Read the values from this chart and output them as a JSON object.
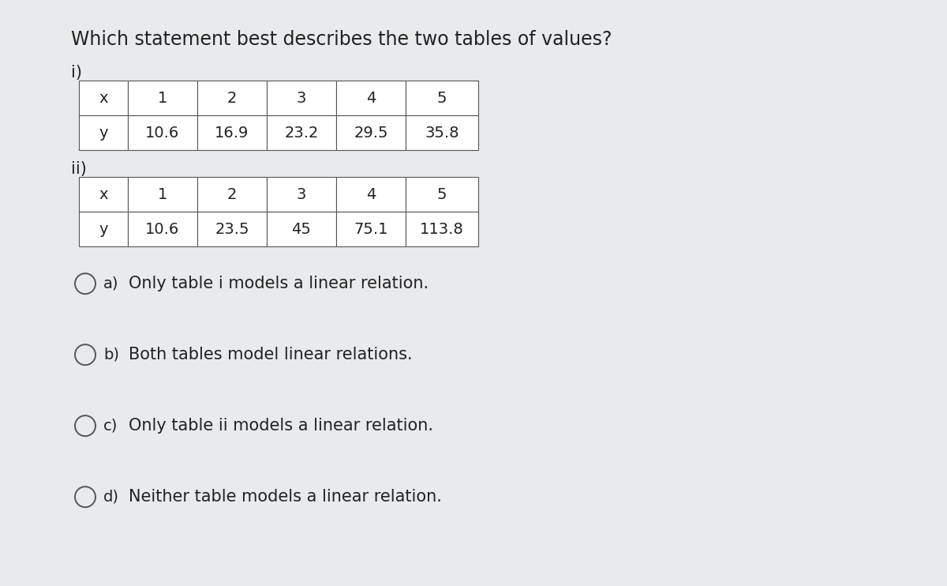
{
  "title": "Which statement best describes the two tables of values?",
  "table1_label": "i)",
  "table2_label": "ii)",
  "table1_rows": [
    [
      "x",
      "1",
      "2",
      "3",
      "4",
      "5"
    ],
    [
      "y",
      "10.6",
      "16.9",
      "23.2",
      "29.5",
      "35.8"
    ]
  ],
  "table2_rows": [
    [
      "x",
      "1",
      "2",
      "3",
      "4",
      "5"
    ],
    [
      "y",
      "10.6",
      "23.5",
      "45",
      "75.1",
      "113.8"
    ]
  ],
  "options": [
    {
      "label": "a)",
      "text": "Only table i models a linear relation."
    },
    {
      "label": "b)",
      "text": "Both tables model linear relations."
    },
    {
      "label": "c)",
      "text": "Only table ii models a linear relation."
    },
    {
      "label": "d)",
      "text": "Neither table models a linear relation."
    }
  ],
  "bg_color": "#e8eaec",
  "table_bg": "#ffffff",
  "border_color": "#555555",
  "text_color": "#222222",
  "title_fontsize": 17,
  "label_fontsize": 15,
  "table_fontsize": 14,
  "option_label_fontsize": 14,
  "option_text_fontsize": 15
}
